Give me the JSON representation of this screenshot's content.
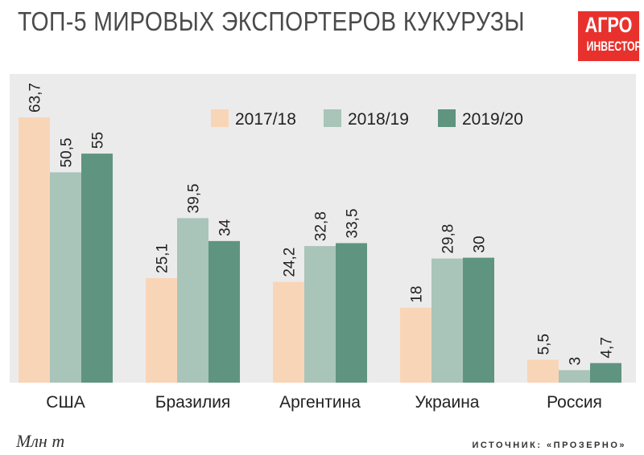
{
  "title": "ТОП-5 МИРОВЫХ ЭКСПОРТЕРОВ КУКУРУЗЫ",
  "logo": {
    "line1": "АГРО",
    "line2": "ИНВЕСТОР"
  },
  "footer": {
    "unit": "Млн т",
    "source": "ИСТОЧНИК: «ПРОЗЕРНО»"
  },
  "colors": {
    "s1": "#f9d5b8",
    "s2": "#a9c4b9",
    "s3": "#5f9480",
    "plot_bg": "#ebebeb"
  },
  "chart_data": {
    "type": "bar",
    "title": "ТОП-5 МИРОВЫХ ЭКСПОРТЕРОВ КУКУРУЗЫ",
    "ylabel": "Млн т",
    "ylim": [
      0,
      63.7
    ],
    "legend_position": "top-right",
    "categories": [
      "США",
      "Бразилия",
      "Аргентина",
      "Украина",
      "Россия"
    ],
    "series": [
      {
        "name": "2017/18",
        "values": [
          63.7,
          25.1,
          24.2,
          18,
          5.5
        ],
        "labels": [
          "63,7",
          "25,1",
          "24,2",
          "18",
          "5,5"
        ]
      },
      {
        "name": "2018/19",
        "values": [
          50.5,
          39.5,
          32.8,
          29.8,
          3
        ],
        "labels": [
          "50,5",
          "39,5",
          "32,8",
          "29,8",
          "3"
        ]
      },
      {
        "name": "2019/20",
        "values": [
          55,
          34,
          33.5,
          30,
          4.7
        ],
        "labels": [
          "55",
          "34",
          "33,5",
          "30",
          "4,7"
        ]
      }
    ]
  }
}
